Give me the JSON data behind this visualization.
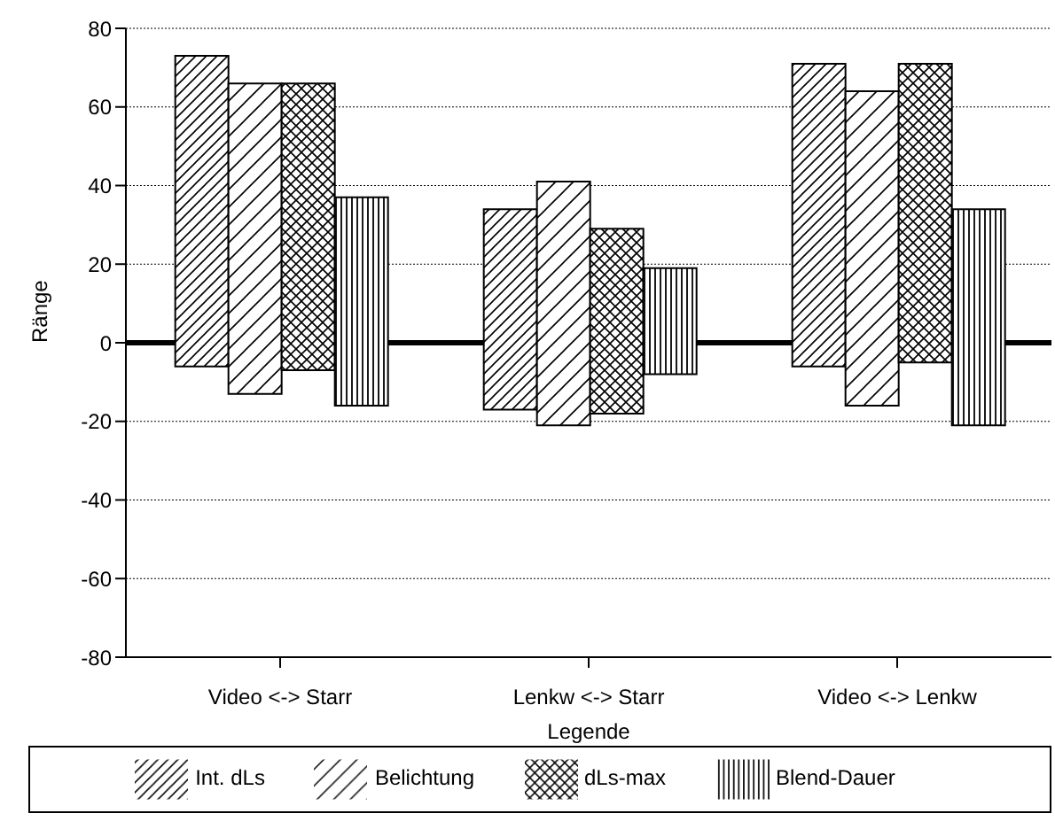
{
  "chart_data": {
    "type": "bar",
    "ylabel": "Ränge",
    "xlabel": "Legende",
    "categories": [
      "Video <-> Starr",
      "Lenkw <-> Starr",
      "Video <-> Lenkw"
    ],
    "series": [
      {
        "name": "Int. dLs",
        "color": "#000000",
        "base": [
          -6,
          -17,
          -6
        ],
        "values": [
          79,
          51,
          77
        ]
      },
      {
        "name": "Belichtung",
        "color": "#000000",
        "base": [
          -13,
          -21,
          -16
        ],
        "values": [
          79,
          62,
          80
        ]
      },
      {
        "name": "dLs-max",
        "color": "#000000",
        "base": [
          -7,
          -18,
          -5
        ],
        "values": [
          73,
          47,
          76
        ]
      },
      {
        "name": "Blend-Dauer",
        "color": "#000000",
        "base": [
          -16,
          -8,
          -21
        ],
        "values": [
          53,
          27,
          55
        ]
      }
    ],
    "ylim": [
      -80,
      80
    ],
    "yticks": [
      -80,
      -60,
      -40,
      -20,
      0,
      20,
      40,
      60,
      80
    ],
    "grid": "y",
    "legend": "bottom",
    "ref_lines": [
      {
        "axis": "y",
        "value": 0,
        "color": "#000000"
      }
    ]
  }
}
